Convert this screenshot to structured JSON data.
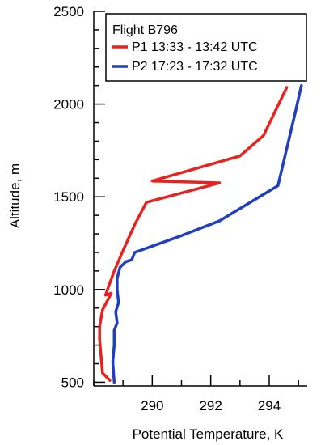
{
  "chart_data": {
    "type": "line",
    "xlabel": "Potential Temperature, K",
    "ylabel": "Altitude, m",
    "xlim": [
      288,
      295.3
    ],
    "ylim": [
      480,
      2500
    ],
    "x_ticks": [
      290,
      292,
      294
    ],
    "y_ticks": [
      500,
      1000,
      1500,
      2000,
      2500
    ],
    "grid": false,
    "legend": {
      "position": "top-right",
      "title": "Flight B796"
    },
    "series": [
      {
        "name": "P1 13:33 - 13:42 UTC",
        "color": "#e8231f",
        "points": [
          [
            294.6,
            2090
          ],
          [
            293.8,
            1830
          ],
          [
            293.0,
            1720
          ],
          [
            290.0,
            1585
          ],
          [
            292.3,
            1575
          ],
          [
            289.8,
            1470
          ],
          [
            289.4,
            1350
          ],
          [
            289.0,
            1210
          ],
          [
            288.7,
            1100
          ],
          [
            288.4,
            970
          ],
          [
            288.6,
            980
          ],
          [
            288.3,
            890
          ],
          [
            288.2,
            800
          ],
          [
            288.2,
            730
          ],
          [
            288.25,
            640
          ],
          [
            288.3,
            550
          ],
          [
            288.55,
            510
          ]
        ]
      },
      {
        "name": "P2 17:23 - 17:32 UTC",
        "color": "#1f3fbf",
        "points": [
          [
            295.1,
            2100
          ],
          [
            294.9,
            1960
          ],
          [
            294.3,
            1560
          ],
          [
            292.3,
            1370
          ],
          [
            291.0,
            1290
          ],
          [
            289.4,
            1200
          ],
          [
            289.3,
            1160
          ],
          [
            289.1,
            1150
          ],
          [
            288.9,
            1120
          ],
          [
            288.8,
            1060
          ],
          [
            288.8,
            1000
          ],
          [
            288.85,
            930
          ],
          [
            288.75,
            880
          ],
          [
            288.8,
            820
          ],
          [
            288.7,
            780
          ],
          [
            288.7,
            700
          ],
          [
            288.65,
            610
          ],
          [
            288.7,
            500
          ]
        ]
      }
    ]
  }
}
